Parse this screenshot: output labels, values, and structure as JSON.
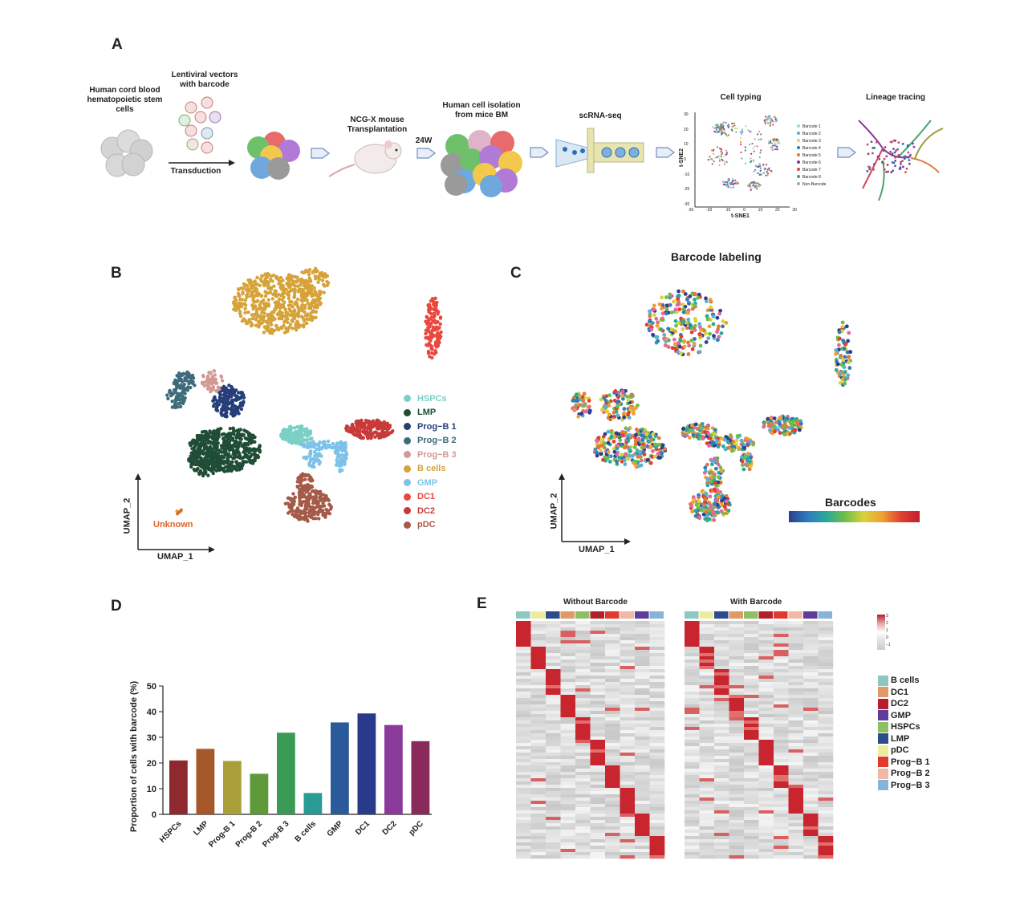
{
  "panels": {
    "a": "A",
    "b": "B",
    "c": "C",
    "d": "D",
    "e": "E"
  },
  "panel_a": {
    "steps": {
      "cord_blood": "Human cord blood hematopoietic stem cells",
      "lentiviral": "Lentiviral vectors with barcode",
      "transduction": "Transduction",
      "transplant": "NCG-X mouse Transplantation",
      "weeks": "24W",
      "isolation": "Human cell isolation from mice BM",
      "scrna": "scRNA-seq",
      "cell_typing": "Cell typing",
      "lineage": "Lineage tracing"
    },
    "tsne": {
      "xlabel": "t-SNE1",
      "ylabel": "t-SNE2",
      "xticks": [
        "-30",
        "-20",
        "-10",
        "0",
        "10",
        "20",
        "30"
      ],
      "yticks": [
        "30",
        "20",
        "10",
        "0",
        "-10",
        "-20",
        "-30"
      ],
      "legend": [
        "Barcode 1",
        "Barcode 2",
        "Barcode 3",
        "Barcode 4",
        "Barcode 5",
        "Barcode 6",
        "Barcode 7",
        "Barcode 8",
        "Non-Barcode"
      ],
      "legend_colors": [
        "#9fd4e8",
        "#5ab0d0",
        "#f2d04a",
        "#2e7bbf",
        "#e07a3a",
        "#7b3f97",
        "#d44b5a",
        "#4aa36b",
        "#aaaaaa"
      ]
    }
  },
  "panel_b": {
    "xlabel": "UMAP_1",
    "ylabel": "UMAP_2",
    "unknown_label": "Unknown",
    "legend": [
      {
        "label": "HSPCs",
        "color": "#7ccfc4"
      },
      {
        "label": "LMP",
        "color": "#1f4d36"
      },
      {
        "label": "Prog−B 1",
        "color": "#263f7a"
      },
      {
        "label": "Prog−B 2",
        "color": "#3e6b7a"
      },
      {
        "label": "Prog−B 3",
        "color": "#d39a93"
      },
      {
        "label": "B cells",
        "color": "#d6a33a"
      },
      {
        "label": "GMP",
        "color": "#7ec2ea"
      },
      {
        "label": "DC1",
        "color": "#e8483d"
      },
      {
        "label": "DC2",
        "color": "#c83a3a"
      },
      {
        "label": "pDC",
        "color": "#a55a48"
      }
    ]
  },
  "panel_c": {
    "title": "Barcode labeling",
    "xlabel": "UMAP_1",
    "ylabel": "UMAP_2",
    "colorbar_label": "Barcodes"
  },
  "panel_e": {
    "titles": [
      "Without Barcode",
      "With Barcode"
    ],
    "scale_ticks": [
      "3",
      "2",
      "1",
      "0",
      "−1"
    ],
    "legend": [
      {
        "label": "B cells",
        "color": "#8cc7c2"
      },
      {
        "label": "DC1",
        "color": "#e09a6a"
      },
      {
        "label": "DC2",
        "color": "#b51f2c"
      },
      {
        "label": "GMP",
        "color": "#5e3c99"
      },
      {
        "label": "HSPCs",
        "color": "#8dc063"
      },
      {
        "label": "LMP",
        "color": "#2c4c8c"
      },
      {
        "label": "pDC",
        "color": "#ecec9f"
      },
      {
        "label": "Prog−B 1",
        "color": "#e2392f"
      },
      {
        "label": "Prog−B 2",
        "color": "#f2b8a6"
      },
      {
        "label": "Prog−B 3",
        "color": "#86b4d6"
      }
    ],
    "top_bar_colors": [
      "#8cc7c2",
      "#ecec9f",
      "#2c4c8c",
      "#e09a6a",
      "#8dc063",
      "#b51f2c",
      "#e2392f",
      "#f2b8a6",
      "#5e3c99",
      "#86b4d6"
    ]
  },
  "chart_data": {
    "type": "bar",
    "title": "",
    "xlabel": "",
    "ylabel": "Proportion of cells with barcode (%)",
    "ylim": [
      0,
      50
    ],
    "yticks": [
      0,
      10,
      20,
      30,
      40,
      50
    ],
    "categories": [
      "HSPCs",
      "LMP",
      "Prog-B 1",
      "Prog-B 2",
      "Prog-B 3",
      "B cells",
      "GMP",
      "DC1",
      "DC2",
      "pDC"
    ],
    "values": [
      21,
      25.5,
      20.8,
      15.8,
      31.8,
      8.3,
      35.8,
      39.3,
      34.8,
      28.5
    ],
    "colors": [
      "#8e2a2f",
      "#a6582a",
      "#a9a03a",
      "#5f9a3a",
      "#3a9a55",
      "#2a9a95",
      "#2a5a9a",
      "#2a3a8a",
      "#8a3a9a",
      "#8a2a5a"
    ]
  }
}
